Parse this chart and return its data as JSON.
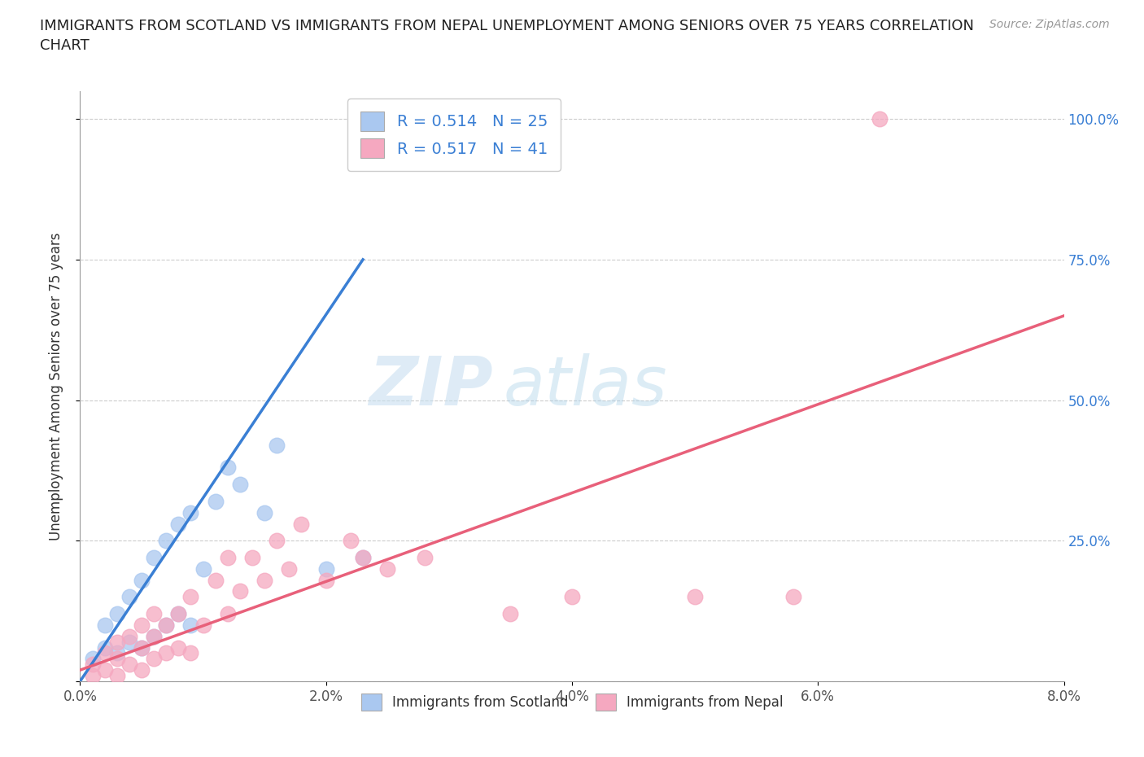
{
  "title": "IMMIGRANTS FROM SCOTLAND VS IMMIGRANTS FROM NEPAL UNEMPLOYMENT AMONG SENIORS OVER 75 YEARS CORRELATION\nCHART",
  "source": "Source: ZipAtlas.com",
  "ylabel": "Unemployment Among Seniors over 75 years",
  "xlim": [
    0.0,
    0.08
  ],
  "ylim": [
    0.0,
    1.05
  ],
  "xticks": [
    0.0,
    0.02,
    0.04,
    0.06,
    0.08
  ],
  "xticklabels": [
    "0.0%",
    "2.0%",
    "4.0%",
    "6.0%",
    "8.0%"
  ],
  "yticks_right": [
    0.25,
    0.5,
    0.75,
    1.0
  ],
  "yticklabels_right": [
    "25.0%",
    "50.0%",
    "75.0%",
    "100.0%"
  ],
  "scotland_color": "#aac8f0",
  "nepal_color": "#f5a8c0",
  "scotland_line_color": "#3a7fd4",
  "nepal_line_color": "#e8607a",
  "R_scotland": 0.514,
  "N_scotland": 25,
  "R_nepal": 0.517,
  "N_nepal": 41,
  "watermark_zip": "ZIP",
  "watermark_atlas": "atlas",
  "scotland_x": [
    0.001,
    0.002,
    0.002,
    0.003,
    0.003,
    0.004,
    0.004,
    0.005,
    0.005,
    0.006,
    0.006,
    0.007,
    0.007,
    0.008,
    0.008,
    0.009,
    0.009,
    0.01,
    0.011,
    0.012,
    0.013,
    0.015,
    0.016,
    0.02,
    0.023
  ],
  "scotland_y": [
    0.04,
    0.06,
    0.1,
    0.05,
    0.12,
    0.07,
    0.15,
    0.06,
    0.18,
    0.08,
    0.22,
    0.1,
    0.25,
    0.12,
    0.28,
    0.1,
    0.3,
    0.2,
    0.32,
    0.38,
    0.35,
    0.3,
    0.42,
    0.2,
    0.22
  ],
  "nepal_x": [
    0.001,
    0.001,
    0.002,
    0.002,
    0.003,
    0.003,
    0.003,
    0.004,
    0.004,
    0.005,
    0.005,
    0.005,
    0.006,
    0.006,
    0.006,
    0.007,
    0.007,
    0.008,
    0.008,
    0.009,
    0.009,
    0.01,
    0.011,
    0.012,
    0.012,
    0.013,
    0.014,
    0.015,
    0.016,
    0.017,
    0.018,
    0.02,
    0.022,
    0.023,
    0.025,
    0.028,
    0.035,
    0.04,
    0.05,
    0.058,
    0.065
  ],
  "nepal_y": [
    0.01,
    0.03,
    0.02,
    0.05,
    0.01,
    0.04,
    0.07,
    0.03,
    0.08,
    0.02,
    0.06,
    0.1,
    0.04,
    0.08,
    0.12,
    0.05,
    0.1,
    0.06,
    0.12,
    0.05,
    0.15,
    0.1,
    0.18,
    0.12,
    0.22,
    0.16,
    0.22,
    0.18,
    0.25,
    0.2,
    0.28,
    0.18,
    0.25,
    0.22,
    0.2,
    0.22,
    0.12,
    0.15,
    0.15,
    0.15,
    1.0
  ],
  "scotland_trend_x": [
    0.0,
    0.023
  ],
  "scotland_trend_y": [
    0.0,
    0.75
  ],
  "nepal_trend_x": [
    0.0,
    0.08
  ],
  "nepal_trend_y": [
    0.02,
    0.65
  ]
}
